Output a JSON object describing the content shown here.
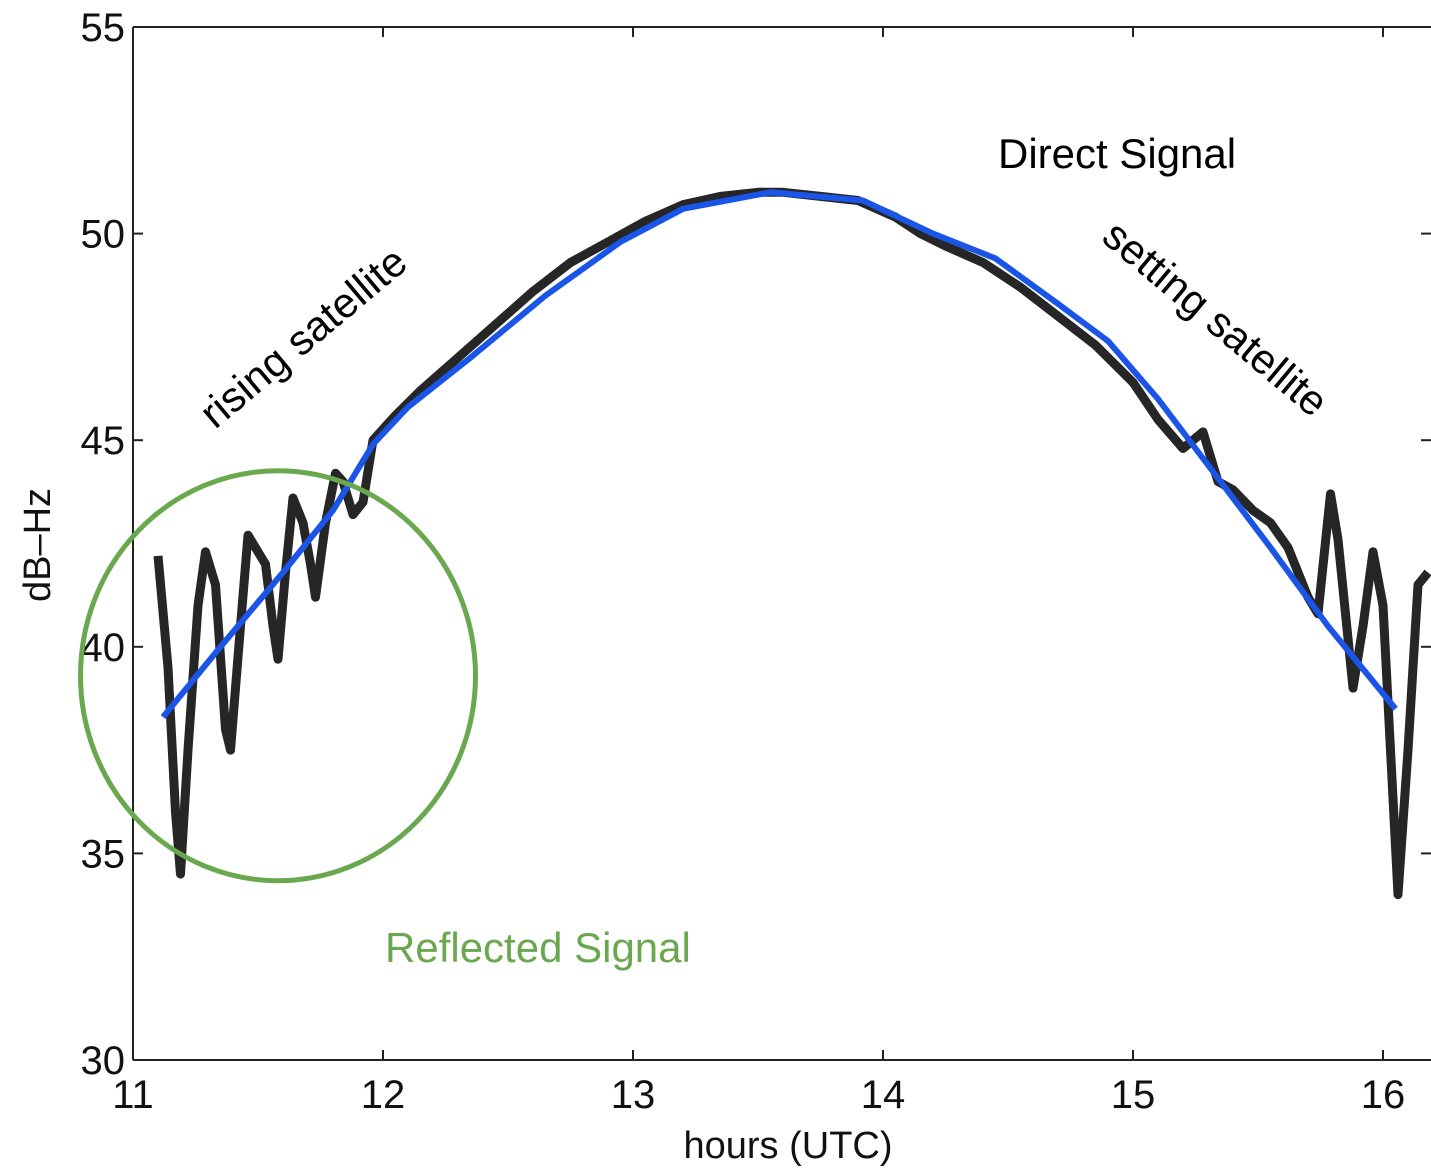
{
  "chart_data": {
    "type": "line",
    "title": "",
    "xlabel": "hours (UTC)",
    "ylabel": "dB–Hz",
    "xlim": [
      11,
      16.2
    ],
    "ylim": [
      30,
      55
    ],
    "xticks": [
      11,
      12,
      13,
      14,
      15,
      16
    ],
    "yticks": [
      30,
      35,
      40,
      45,
      50,
      55
    ],
    "xtick_labels": [
      "11",
      "12",
      "13",
      "14",
      "15",
      "16"
    ],
    "ytick_labels": [
      "30",
      "35",
      "40",
      "45",
      "50",
      "55"
    ],
    "grid": false,
    "series": [
      {
        "color": "#000000",
        "points": [
          [
            11.1,
            42.2
          ],
          [
            11.14,
            39.5
          ],
          [
            11.17,
            36.0
          ],
          [
            11.19,
            34.5
          ],
          [
            11.22,
            37.5
          ],
          [
            11.26,
            41.0
          ],
          [
            11.29,
            42.3
          ],
          [
            11.33,
            41.5
          ],
          [
            11.37,
            38.0
          ],
          [
            11.39,
            37.5
          ],
          [
            11.43,
            40.5
          ],
          [
            11.46,
            42.7
          ],
          [
            11.5,
            42.3
          ],
          [
            11.53,
            42.0
          ],
          [
            11.56,
            40.5
          ],
          [
            11.58,
            39.7
          ],
          [
            11.61,
            41.8
          ],
          [
            11.64,
            43.6
          ],
          [
            11.68,
            43.0
          ],
          [
            11.71,
            42.0
          ],
          [
            11.73,
            41.2
          ],
          [
            11.77,
            43.0
          ],
          [
            11.81,
            44.2
          ],
          [
            11.84,
            44.0
          ],
          [
            11.88,
            43.2
          ],
          [
            11.92,
            43.5
          ],
          [
            11.96,
            45.0
          ],
          [
            12.05,
            45.6
          ],
          [
            12.15,
            46.2
          ],
          [
            12.3,
            47.0
          ],
          [
            12.45,
            47.8
          ],
          [
            12.6,
            48.6
          ],
          [
            12.75,
            49.3
          ],
          [
            12.9,
            49.8
          ],
          [
            13.05,
            50.3
          ],
          [
            13.2,
            50.7
          ],
          [
            13.35,
            50.9
          ],
          [
            13.5,
            51.0
          ],
          [
            13.6,
            51.0
          ],
          [
            13.75,
            50.9
          ],
          [
            13.9,
            50.8
          ],
          [
            14.05,
            50.4
          ],
          [
            14.15,
            50.0
          ],
          [
            14.25,
            49.7
          ],
          [
            14.4,
            49.3
          ],
          [
            14.55,
            48.7
          ],
          [
            14.7,
            48.0
          ],
          [
            14.85,
            47.3
          ],
          [
            15.0,
            46.4
          ],
          [
            15.1,
            45.5
          ],
          [
            15.2,
            44.8
          ],
          [
            15.28,
            45.2
          ],
          [
            15.34,
            44.0
          ],
          [
            15.4,
            43.8
          ],
          [
            15.48,
            43.3
          ],
          [
            15.55,
            43.0
          ],
          [
            15.62,
            42.4
          ],
          [
            15.7,
            41.2
          ],
          [
            15.74,
            40.8
          ],
          [
            15.79,
            43.7
          ],
          [
            15.82,
            42.6
          ],
          [
            15.88,
            39.0
          ],
          [
            15.92,
            40.5
          ],
          [
            15.96,
            42.3
          ],
          [
            16.0,
            41.0
          ],
          [
            16.03,
            37.5
          ],
          [
            16.06,
            34.0
          ],
          [
            16.1,
            37.5
          ],
          [
            16.14,
            41.5
          ],
          [
            16.18,
            41.8
          ]
        ]
      },
      {
        "color": "#1a55e8",
        "points": [
          [
            11.12,
            38.3
          ],
          [
            11.35,
            40.0
          ],
          [
            11.6,
            41.8
          ],
          [
            11.8,
            43.3
          ],
          [
            11.96,
            44.9
          ],
          [
            12.1,
            45.8
          ],
          [
            12.35,
            47.0
          ],
          [
            12.65,
            48.5
          ],
          [
            12.95,
            49.8
          ],
          [
            13.2,
            50.6
          ],
          [
            13.55,
            51.0
          ],
          [
            13.92,
            50.8
          ],
          [
            14.2,
            50.0
          ],
          [
            14.45,
            49.4
          ],
          [
            14.7,
            48.3
          ],
          [
            14.9,
            47.4
          ],
          [
            15.1,
            46.0
          ],
          [
            15.35,
            44.0
          ],
          [
            15.55,
            42.4
          ],
          [
            15.78,
            40.5
          ],
          [
            16.05,
            38.5
          ]
        ]
      }
    ],
    "annotations": [
      {
        "text": "Direct Signal",
        "color": "#000000"
      },
      {
        "text": "rising satellite",
        "color": "#000000"
      },
      {
        "text": "setting satellite",
        "color": "#000000"
      },
      {
        "text": "Reflected Signal",
        "color": "#6aa84f"
      }
    ],
    "highlight_circle": {
      "color": "#6aa84f",
      "center": [
        11.58,
        39.3
      ],
      "radius_x_hours": 0.79
    }
  }
}
